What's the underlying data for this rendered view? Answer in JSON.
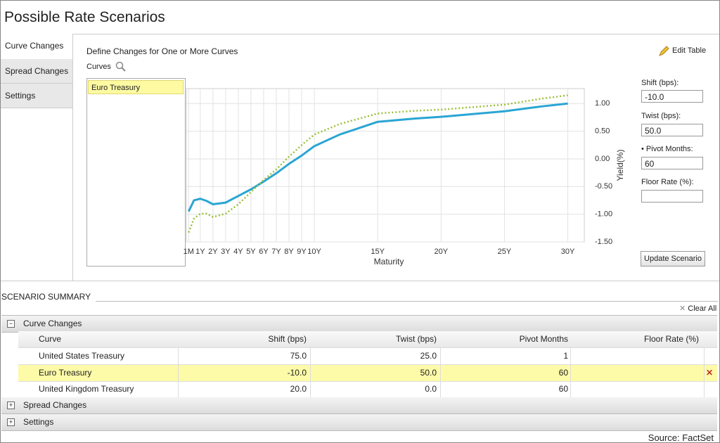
{
  "header": {
    "title": "Possible Rate Scenarios"
  },
  "tabs": [
    "Curve Changes",
    "Spread Changes",
    "Settings"
  ],
  "panel": {
    "heading": "Define Changes for One or More Curves",
    "curves_label": "Curves",
    "curves_list": [
      "Euro Treasury"
    ],
    "edit_table": "Edit Table",
    "form": {
      "shift_label": "Shift (bps):",
      "shift_value": "-10.0",
      "twist_label": "Twist (bps):",
      "twist_value": "50.0",
      "pivot_label": "• Pivot Months:",
      "pivot_value": "60",
      "floor_label": "Floor Rate (%):"
    },
    "update_button": "Update Scenario"
  },
  "chart_data": {
    "type": "line",
    "x_label": "Maturity",
    "y_label": "Yield(%)",
    "x": [
      0.083,
      0.5,
      1,
      1.5,
      2,
      3,
      4,
      5,
      6,
      7,
      8,
      9,
      10,
      12,
      15,
      18,
      20,
      25,
      28,
      30
    ],
    "series": [
      {
        "color": "#2aa5d3",
        "style": "solid",
        "values": [
          -0.95,
          -0.75,
          -0.72,
          -0.76,
          -0.82,
          -0.79,
          -0.67,
          -0.55,
          -0.41,
          -0.26,
          -0.09,
          0.06,
          0.23,
          0.44,
          0.67,
          0.73,
          0.76,
          0.86,
          0.95,
          1.0
        ]
      },
      {
        "color": "#9cbf3a",
        "style": "dotted",
        "values": [
          -1.33,
          -1.08,
          -0.99,
          -0.99,
          -1.05,
          -0.99,
          -0.82,
          -0.6,
          -0.38,
          -0.19,
          0.04,
          0.25,
          0.44,
          0.63,
          0.82,
          0.87,
          0.89,
          0.98,
          1.09,
          1.15
        ]
      }
    ],
    "xlim": [
      -0.1,
      31.3
    ],
    "xticks": [
      {
        "value": 0.083,
        "label": "1M"
      },
      {
        "value": 1,
        "label": "1Y"
      },
      {
        "value": 2,
        "label": "2Y"
      },
      {
        "value": 3,
        "label": "3Y"
      },
      {
        "value": 4,
        "label": "4Y"
      },
      {
        "value": 5,
        "label": "5Y"
      },
      {
        "value": 6,
        "label": "6Y"
      },
      {
        "value": 7,
        "label": "7Y"
      },
      {
        "value": 8,
        "label": "8Y"
      },
      {
        "value": 9,
        "label": "9Y"
      },
      {
        "value": 10,
        "label": "10Y"
      },
      {
        "value": 15,
        "label": "15Y"
      },
      {
        "value": 20,
        "label": "20Y"
      },
      {
        "value": 25,
        "label": "25Y"
      },
      {
        "value": 30,
        "label": "30Y"
      }
    ],
    "ylim": [
      -1.5,
      1.27
    ],
    "yticks": [
      {
        "value": 1,
        "label": "1.00"
      },
      {
        "value": 0.5,
        "label": "0.50"
      },
      {
        "value": 0,
        "label": "0.00"
      },
      {
        "value": -0.5,
        "label": "-0.50"
      },
      {
        "value": -1,
        "label": "-1.00"
      },
      {
        "value": -1.5,
        "label": "-1.50"
      }
    ],
    "grid": true
  },
  "summary": {
    "title": "SCENARIO SUMMARY",
    "clear_all": "Clear All",
    "groups": [
      "Curve Changes",
      "Spread Changes",
      "Settings"
    ],
    "columns": [
      "Curve",
      "Shift (bps)",
      "Twist (bps)",
      "Pivot Months",
      "Floor Rate (%)"
    ],
    "rows": [
      [
        "United States Treasury",
        "75.0",
        "25.0",
        "1"
      ],
      [
        "Euro Treasury",
        "-10.0",
        "50.0",
        "60"
      ],
      [
        "United Kingdom Treasury",
        "20.0",
        "0.0",
        "60"
      ]
    ]
  },
  "footer": {
    "source": "Source: FactSet"
  }
}
